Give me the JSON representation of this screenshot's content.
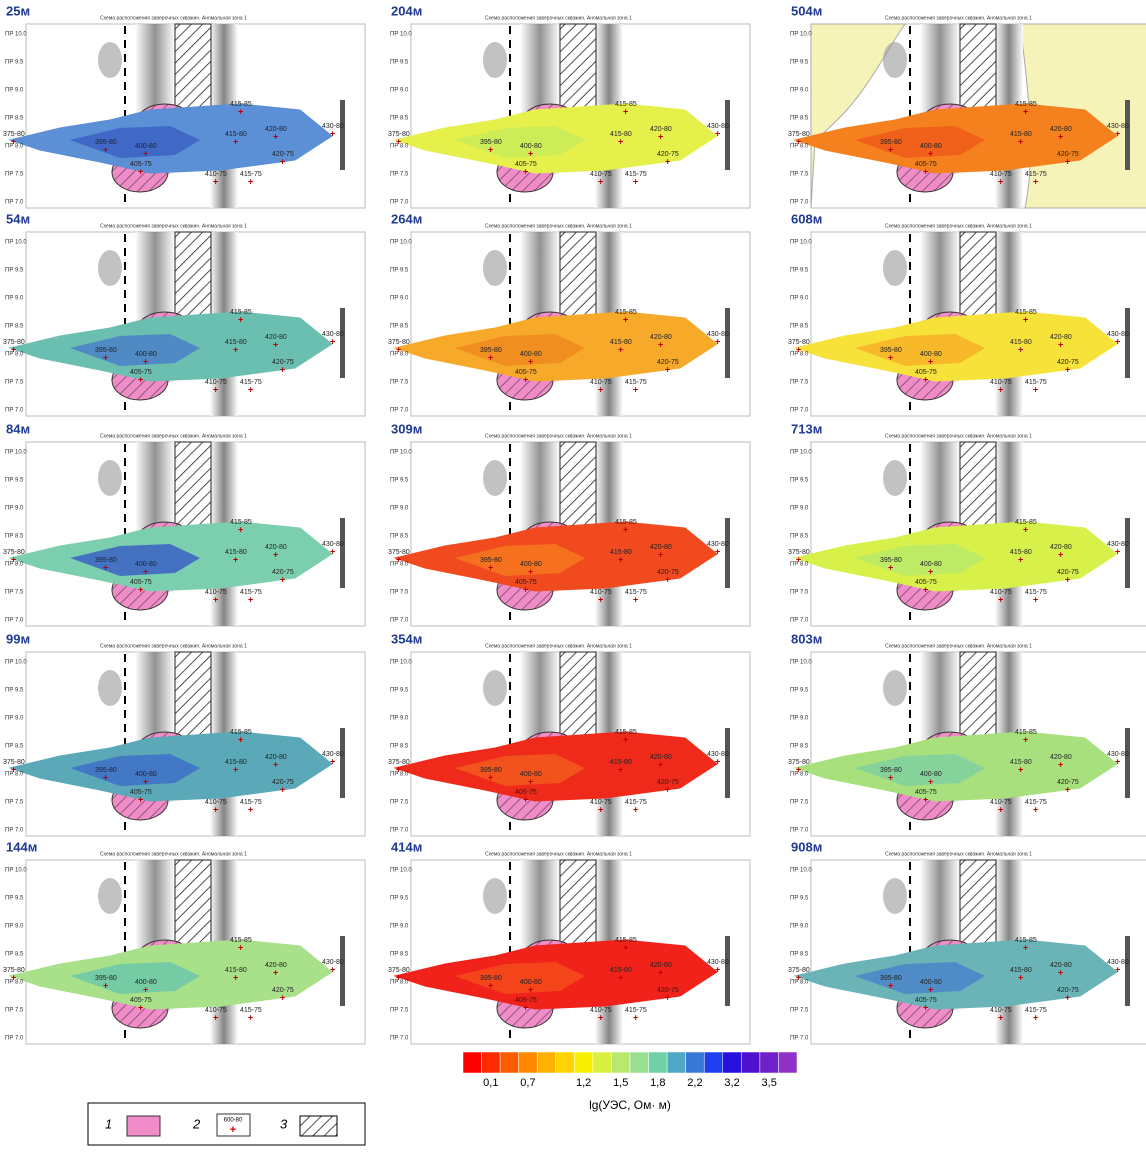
{
  "panels": [
    {
      "label": "25м",
      "title": "Схема расположения заверочных скважин. Аномальная зона 1",
      "fill": "#5b8fd6",
      "inner": "#3b62c4"
    },
    {
      "label": "54м",
      "title": "Схема расположения заверочных скважин. Аномальная зона 1",
      "fill": "#6bbfb0",
      "inner": "#4a80c8"
    },
    {
      "label": "84м",
      "title": "Схема расположения заверочных скважин. Аномальная зона 1",
      "fill": "#7ccfae",
      "inner": "#3b62c4"
    },
    {
      "label": "99м",
      "title": "Схема расположения заверочных скважин. Аномальная зона 1",
      "fill": "#5ba9b8",
      "inner": "#3f70c8"
    },
    {
      "label": "144м",
      "title": "Схема расположения заверочных скважин. Аномальная зона 1",
      "fill": "#a9e08a",
      "inner": "#6cc7a7"
    },
    {
      "label": "204м",
      "title": "Схема расположения заверочных скважин. Аномальная зона 1",
      "fill": "#e6f04a",
      "inner": "#c8ec5a"
    },
    {
      "label": "264м",
      "title": "Схема расположения заверочных скважин. Аномальная зона 1",
      "fill": "#f7a92a",
      "inner": "#f08a1e"
    },
    {
      "label": "309м",
      "title": "Схема расположения заверочных скважин. Аномальная зона 1",
      "fill": "#f04a1e",
      "inner": "#f7781e"
    },
    {
      "label": "354м",
      "title": "Схема расположения заверочных скважин. Аномальная зона 1",
      "fill": "#f02a1a",
      "inner": "#f25a1e"
    },
    {
      "label": "414м",
      "title": "Схема расположения заверочных скважин. Аномальная зона 1",
      "fill": "#f0221a",
      "inner": "#f54a1a"
    },
    {
      "label": "504м",
      "title": "Схема расположения заверочных скважин. Аномальная зона 1",
      "fill": "#f4801e",
      "inner": "#f05a1a",
      "background": "#f5f3b8"
    },
    {
      "label": "608м",
      "title": "Схема расположения заверочных скважин. Аномальная зона 1",
      "fill": "#f7e23a",
      "inner": "#f7b028"
    },
    {
      "label": "713м",
      "title": "Схема расположения заверочных скважин. Аномальная зона 1",
      "fill": "#d8f04a",
      "inner": "#b8ea6a"
    },
    {
      "label": "803м",
      "title": "Схема расположения заверочных скважин. Аномальная зона 1",
      "fill": "#a8e07e",
      "inner": "#7fd0a0"
    },
    {
      "label": "908м",
      "title": "Схема расположения заверочных скважин. Аномальная зона 1",
      "fill": "#6ab4b8",
      "inner": "#4a84c8"
    }
  ],
  "wells": [
    "395-80",
    "400-80",
    "415-85",
    "420-80",
    "415-80",
    "420-75",
    "405-75",
    "410-75",
    "415-75",
    "430-80",
    "375-80"
  ],
  "profiles": [
    "ПР 10.0",
    "ПР 9.5",
    "ПР 9.0",
    "ПР 8.5",
    "ПР 8.0",
    "ПР 7.5",
    "ПР 7.0"
  ],
  "colorbar": {
    "colors": [
      "#ff0000",
      "#ff2a00",
      "#ff5a00",
      "#ff8a00",
      "#ffb000",
      "#ffd400",
      "#f7f000",
      "#d8f040",
      "#b8e870",
      "#98e090",
      "#70d0a8",
      "#50a8c8",
      "#3a78d8",
      "#2040f0",
      "#2810e0",
      "#5010d0",
      "#7020c8",
      "#9030c8"
    ],
    "ticks": [
      "0,1",
      "0,7",
      "1,2",
      "1,5",
      "1,8",
      "2,2",
      "3,2",
      "3,5"
    ],
    "label": "lg(УЭС, Ом· м)"
  },
  "legend": {
    "items": [
      "1",
      "2",
      "3"
    ],
    "well_sample": "600-80"
  }
}
